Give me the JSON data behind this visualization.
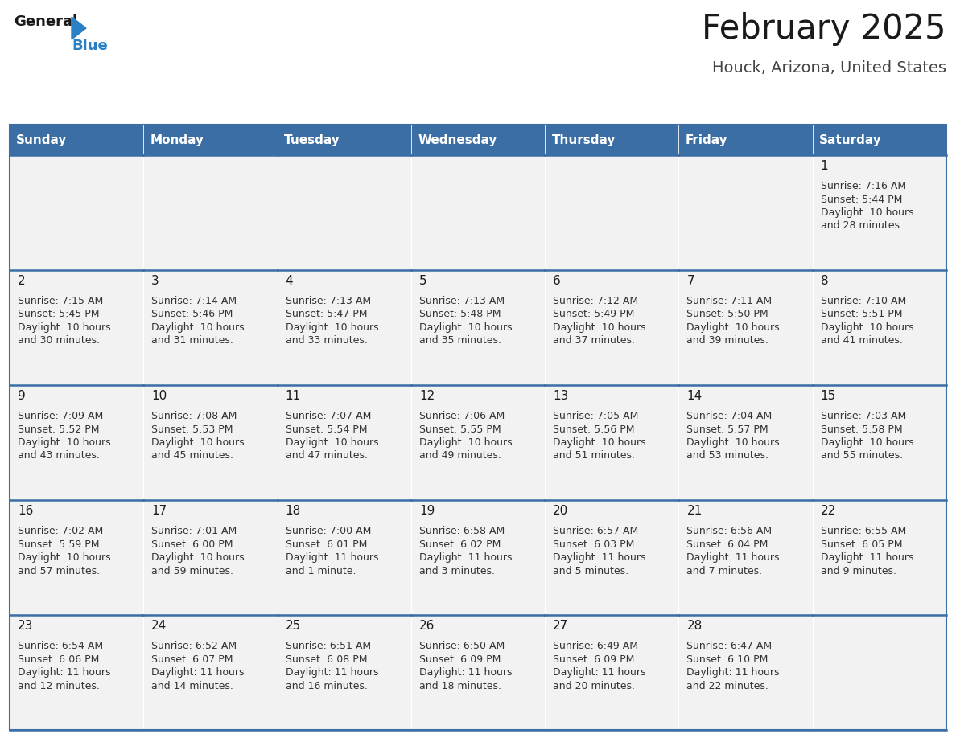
{
  "title": "February 2025",
  "subtitle": "Houck, Arizona, United States",
  "header_bg_color": "#3A6EA5",
  "header_text_color": "#FFFFFF",
  "cell_bg_color": "#F2F2F2",
  "border_color": "#3A6EA5",
  "day_headers": [
    "Sunday",
    "Monday",
    "Tuesday",
    "Wednesday",
    "Thursday",
    "Friday",
    "Saturday"
  ],
  "title_color": "#1a1a1a",
  "subtitle_color": "#444444",
  "day_num_color": "#1a1a1a",
  "cell_text_color": "#333333",
  "logo_general_color": "#1a1a1a",
  "logo_blue_color": "#2980C4",
  "calendar_data": [
    [
      null,
      null,
      null,
      null,
      null,
      null,
      {
        "day": 1,
        "sunrise": "7:16 AM",
        "sunset": "5:44 PM",
        "daylight_line1": "Daylight: 10 hours",
        "daylight_line2": "and 28 minutes."
      }
    ],
    [
      {
        "day": 2,
        "sunrise": "7:15 AM",
        "sunset": "5:45 PM",
        "daylight_line1": "Daylight: 10 hours",
        "daylight_line2": "and 30 minutes."
      },
      {
        "day": 3,
        "sunrise": "7:14 AM",
        "sunset": "5:46 PM",
        "daylight_line1": "Daylight: 10 hours",
        "daylight_line2": "and 31 minutes."
      },
      {
        "day": 4,
        "sunrise": "7:13 AM",
        "sunset": "5:47 PM",
        "daylight_line1": "Daylight: 10 hours",
        "daylight_line2": "and 33 minutes."
      },
      {
        "day": 5,
        "sunrise": "7:13 AM",
        "sunset": "5:48 PM",
        "daylight_line1": "Daylight: 10 hours",
        "daylight_line2": "and 35 minutes."
      },
      {
        "day": 6,
        "sunrise": "7:12 AM",
        "sunset": "5:49 PM",
        "daylight_line1": "Daylight: 10 hours",
        "daylight_line2": "and 37 minutes."
      },
      {
        "day": 7,
        "sunrise": "7:11 AM",
        "sunset": "5:50 PM",
        "daylight_line1": "Daylight: 10 hours",
        "daylight_line2": "and 39 minutes."
      },
      {
        "day": 8,
        "sunrise": "7:10 AM",
        "sunset": "5:51 PM",
        "daylight_line1": "Daylight: 10 hours",
        "daylight_line2": "and 41 minutes."
      }
    ],
    [
      {
        "day": 9,
        "sunrise": "7:09 AM",
        "sunset": "5:52 PM",
        "daylight_line1": "Daylight: 10 hours",
        "daylight_line2": "and 43 minutes."
      },
      {
        "day": 10,
        "sunrise": "7:08 AM",
        "sunset": "5:53 PM",
        "daylight_line1": "Daylight: 10 hours",
        "daylight_line2": "and 45 minutes."
      },
      {
        "day": 11,
        "sunrise": "7:07 AM",
        "sunset": "5:54 PM",
        "daylight_line1": "Daylight: 10 hours",
        "daylight_line2": "and 47 minutes."
      },
      {
        "day": 12,
        "sunrise": "7:06 AM",
        "sunset": "5:55 PM",
        "daylight_line1": "Daylight: 10 hours",
        "daylight_line2": "and 49 minutes."
      },
      {
        "day": 13,
        "sunrise": "7:05 AM",
        "sunset": "5:56 PM",
        "daylight_line1": "Daylight: 10 hours",
        "daylight_line2": "and 51 minutes."
      },
      {
        "day": 14,
        "sunrise": "7:04 AM",
        "sunset": "5:57 PM",
        "daylight_line1": "Daylight: 10 hours",
        "daylight_line2": "and 53 minutes."
      },
      {
        "day": 15,
        "sunrise": "7:03 AM",
        "sunset": "5:58 PM",
        "daylight_line1": "Daylight: 10 hours",
        "daylight_line2": "and 55 minutes."
      }
    ],
    [
      {
        "day": 16,
        "sunrise": "7:02 AM",
        "sunset": "5:59 PM",
        "daylight_line1": "Daylight: 10 hours",
        "daylight_line2": "and 57 minutes."
      },
      {
        "day": 17,
        "sunrise": "7:01 AM",
        "sunset": "6:00 PM",
        "daylight_line1": "Daylight: 10 hours",
        "daylight_line2": "and 59 minutes."
      },
      {
        "day": 18,
        "sunrise": "7:00 AM",
        "sunset": "6:01 PM",
        "daylight_line1": "Daylight: 11 hours",
        "daylight_line2": "and 1 minute."
      },
      {
        "day": 19,
        "sunrise": "6:58 AM",
        "sunset": "6:02 PM",
        "daylight_line1": "Daylight: 11 hours",
        "daylight_line2": "and 3 minutes."
      },
      {
        "day": 20,
        "sunrise": "6:57 AM",
        "sunset": "6:03 PM",
        "daylight_line1": "Daylight: 11 hours",
        "daylight_line2": "and 5 minutes."
      },
      {
        "day": 21,
        "sunrise": "6:56 AM",
        "sunset": "6:04 PM",
        "daylight_line1": "Daylight: 11 hours",
        "daylight_line2": "and 7 minutes."
      },
      {
        "day": 22,
        "sunrise": "6:55 AM",
        "sunset": "6:05 PM",
        "daylight_line1": "Daylight: 11 hours",
        "daylight_line2": "and 9 minutes."
      }
    ],
    [
      {
        "day": 23,
        "sunrise": "6:54 AM",
        "sunset": "6:06 PM",
        "daylight_line1": "Daylight: 11 hours",
        "daylight_line2": "and 12 minutes."
      },
      {
        "day": 24,
        "sunrise": "6:52 AM",
        "sunset": "6:07 PM",
        "daylight_line1": "Daylight: 11 hours",
        "daylight_line2": "and 14 minutes."
      },
      {
        "day": 25,
        "sunrise": "6:51 AM",
        "sunset": "6:08 PM",
        "daylight_line1": "Daylight: 11 hours",
        "daylight_line2": "and 16 minutes."
      },
      {
        "day": 26,
        "sunrise": "6:50 AM",
        "sunset": "6:09 PM",
        "daylight_line1": "Daylight: 11 hours",
        "daylight_line2": "and 18 minutes."
      },
      {
        "day": 27,
        "sunrise": "6:49 AM",
        "sunset": "6:09 PM",
        "daylight_line1": "Daylight: 11 hours",
        "daylight_line2": "and 20 minutes."
      },
      {
        "day": 28,
        "sunrise": "6:47 AM",
        "sunset": "6:10 PM",
        "daylight_line1": "Daylight: 11 hours",
        "daylight_line2": "and 22 minutes."
      },
      null
    ]
  ]
}
